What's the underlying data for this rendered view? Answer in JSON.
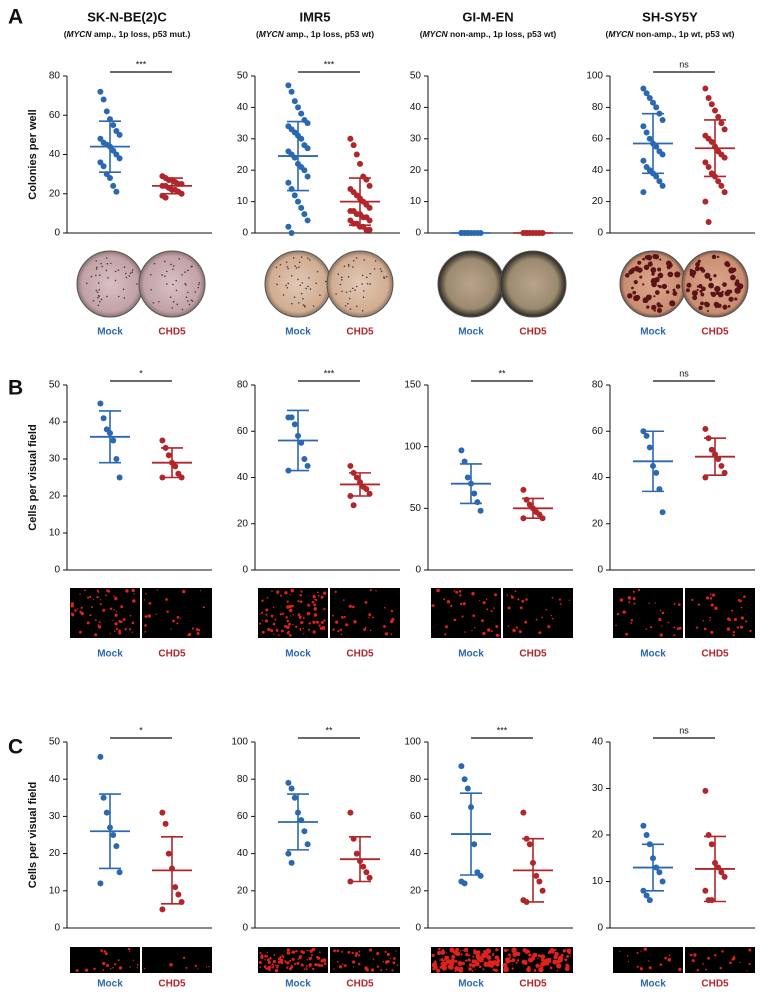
{
  "figure": {
    "columns": [
      {
        "title": "SK-N-BE(2)C",
        "subtitle": [
          "(",
          "MYCN",
          " amp., 1p loss, p53 mut.)"
        ]
      },
      {
        "title": "IMR5",
        "subtitle": [
          "(",
          "MYCN",
          " amp., 1p loss, p53 wt)"
        ]
      },
      {
        "title": "GI-M-EN",
        "subtitle": [
          "(",
          "MYCN",
          " non-amp., 1p loss, p53 wt)"
        ]
      },
      {
        "title": "SH-SY5Y",
        "subtitle": [
          "(",
          "MYCN",
          " non-amp., 1p wt, p53 wt)"
        ]
      }
    ],
    "rows": [
      {
        "letter": "A",
        "ylabel": "Colonies per well"
      },
      {
        "letter": "B",
        "ylabel": "Cells per visual field"
      },
      {
        "letter": "C",
        "ylabel": "Cells per visual field"
      }
    ]
  },
  "chart_data": [
    {
      "type": "dotplot",
      "significance": "***",
      "ylim": [
        0,
        80
      ],
      "yticks": [
        0,
        20,
        40,
        60,
        80
      ],
      "series": [
        {
          "name": "Mock",
          "color": "#2a68b1",
          "mean": 44,
          "sd": 13,
          "values": [
            72,
            68,
            62,
            58,
            55,
            52,
            50,
            48,
            46,
            45,
            44,
            42,
            40,
            38,
            36,
            34,
            30,
            28,
            24,
            21
          ]
        },
        {
          "name": "CHD5",
          "color": "#b1262a",
          "mean": 24,
          "sd": 4,
          "values": [
            29,
            28,
            27,
            27,
            26,
            25,
            25,
            24,
            24,
            23,
            22,
            22,
            21,
            20,
            19,
            18
          ]
        }
      ]
    },
    {
      "type": "dotplot",
      "significance": "***",
      "ylim": [
        0,
        50
      ],
      "yticks": [
        0,
        10,
        20,
        30,
        40,
        50
      ],
      "series": [
        {
          "name": "Mock",
          "color": "#2a68b1",
          "mean": 24.5,
          "sd": 11,
          "values": [
            47,
            45,
            42,
            40,
            38,
            36,
            35,
            34,
            33,
            32,
            31,
            30,
            28,
            27,
            26,
            25,
            24,
            22,
            21,
            20,
            18,
            16,
            14,
            12,
            10,
            8,
            6,
            4,
            2,
            0
          ]
        },
        {
          "name": "CHD5",
          "color": "#b1262a",
          "mean": 10,
          "sd": 7.5,
          "values": [
            30,
            28,
            25,
            22,
            18,
            17,
            15,
            14,
            13,
            12,
            11,
            10,
            9,
            8,
            7,
            7,
            6,
            6,
            5,
            5,
            4,
            4,
            3,
            3,
            2,
            2,
            1,
            1
          ]
        }
      ]
    },
    {
      "type": "dotplot",
      "ylim": [
        0,
        50
      ],
      "yticks": [
        0,
        10,
        20,
        30,
        40,
        50
      ],
      "series": [
        {
          "name": "Mock",
          "color": "#2a68b1",
          "mean": 0,
          "sd": 0,
          "values": [
            0,
            0,
            0,
            0,
            0,
            0,
            0,
            0,
            0,
            0
          ]
        },
        {
          "name": "CHD5",
          "color": "#b1262a",
          "mean": 0,
          "sd": 0,
          "values": [
            0,
            0,
            0,
            0,
            0,
            0,
            0,
            0,
            0,
            0
          ]
        }
      ]
    },
    {
      "type": "dotplot",
      "significance": "ns",
      "ylim": [
        0,
        100
      ],
      "yticks": [
        0,
        20,
        40,
        60,
        80,
        100
      ],
      "series": [
        {
          "name": "Mock",
          "color": "#2a68b1",
          "mean": 57,
          "sd": 19,
          "values": [
            92,
            89,
            86,
            83,
            80,
            76,
            72,
            68,
            64,
            60,
            57,
            55,
            52,
            50,
            46,
            42,
            40,
            38,
            36,
            33,
            30,
            26
          ]
        },
        {
          "name": "CHD5",
          "color": "#b1262a",
          "mean": 54,
          "sd": 18,
          "values": [
            92,
            86,
            82,
            78,
            74,
            70,
            66,
            62,
            60,
            58,
            55,
            52,
            50,
            48,
            45,
            42,
            38,
            36,
            33,
            30,
            26,
            20,
            7
          ]
        }
      ]
    },
    {
      "type": "dotplot",
      "significance": "*",
      "ylim": [
        0,
        50
      ],
      "yticks": [
        0,
        10,
        20,
        30,
        40,
        50
      ],
      "series": [
        {
          "name": "Mock",
          "color": "#2a68b1",
          "mean": 36,
          "sd": 7,
          "values": [
            45,
            41,
            38,
            37,
            35,
            30,
            25
          ]
        },
        {
          "name": "CHD5",
          "color": "#b1262a",
          "mean": 29,
          "sd": 4,
          "values": [
            35,
            33,
            31,
            29,
            28,
            26,
            25,
            25
          ]
        }
      ]
    },
    {
      "type": "dotplot",
      "significance": "***",
      "ylim": [
        0,
        80
      ],
      "yticks": [
        0,
        20,
        40,
        60,
        80
      ],
      "series": [
        {
          "name": "Mock",
          "color": "#2a68b1",
          "mean": 56,
          "sd": 13,
          "values": [
            66,
            66,
            63,
            58,
            55,
            48,
            45,
            43
          ]
        },
        {
          "name": "CHD5",
          "color": "#b1262a",
          "mean": 37,
          "sd": 5,
          "values": [
            45,
            42,
            40,
            38,
            36,
            35,
            33,
            32,
            28
          ]
        }
      ]
    },
    {
      "type": "dotplot",
      "significance": "**",
      "ylim": [
        0,
        150
      ],
      "yticks": [
        0,
        50,
        100,
        150
      ],
      "series": [
        {
          "name": "Mock",
          "color": "#2a68b1",
          "mean": 70,
          "sd": 16,
          "values": [
            97,
            88,
            75,
            70,
            62,
            55,
            48
          ]
        },
        {
          "name": "CHD5",
          "color": "#b1262a",
          "mean": 50,
          "sd": 8,
          "values": [
            65,
            57,
            53,
            50,
            47,
            45,
            42,
            42
          ]
        }
      ]
    },
    {
      "type": "dotplot",
      "significance": "ns",
      "ylim": [
        0,
        80
      ],
      "yticks": [
        0,
        20,
        40,
        60,
        80
      ],
      "series": [
        {
          "name": "Mock",
          "color": "#2a68b1",
          "mean": 47,
          "sd": 13,
          "values": [
            60,
            58,
            53,
            45,
            42,
            35,
            25
          ]
        },
        {
          "name": "CHD5",
          "color": "#b1262a",
          "mean": 49,
          "sd": 8,
          "values": [
            61,
            57,
            52,
            50,
            48,
            45,
            42,
            40
          ]
        }
      ]
    },
    {
      "type": "dotplot",
      "significance": "*",
      "ylim": [
        0,
        50
      ],
      "yticks": [
        0,
        10,
        20,
        30,
        40,
        50
      ],
      "series": [
        {
          "name": "Mock",
          "color": "#2a68b1",
          "mean": 26,
          "sd": 10,
          "values": [
            46,
            35,
            31,
            27,
            25,
            22,
            15,
            12
          ]
        },
        {
          "name": "CHD5",
          "color": "#b1262a",
          "mean": 15.5,
          "sd": 9,
          "values": [
            31,
            28,
            20,
            16,
            11,
            9,
            7,
            5
          ]
        }
      ]
    },
    {
      "type": "dotplot",
      "significance": "**",
      "ylim": [
        0,
        100
      ],
      "yticks": [
        0,
        20,
        40,
        60,
        80,
        100
      ],
      "series": [
        {
          "name": "Mock",
          "color": "#2a68b1",
          "mean": 57,
          "sd": 15,
          "values": [
            78,
            75,
            70,
            62,
            58,
            52,
            45,
            40,
            35
          ]
        },
        {
          "name": "CHD5",
          "color": "#b1262a",
          "mean": 37,
          "sd": 12,
          "values": [
            62,
            48,
            40,
            36,
            33,
            30,
            27,
            25
          ]
        }
      ]
    },
    {
      "type": "dotplot",
      "significance": "***",
      "ylim": [
        0,
        100
      ],
      "yticks": [
        0,
        20,
        40,
        60,
        80,
        100
      ],
      "series": [
        {
          "name": "Mock",
          "color": "#2a68b1",
          "mean": 50.5,
          "sd": 22,
          "values": [
            87,
            80,
            75,
            65,
            45,
            30,
            28,
            25,
            24
          ]
        },
        {
          "name": "CHD5",
          "color": "#b1262a",
          "mean": 31,
          "sd": 17,
          "values": [
            62,
            48,
            45,
            35,
            28,
            25,
            20,
            15,
            14
          ]
        }
      ]
    },
    {
      "type": "dotplot",
      "significance": "ns",
      "ylim": [
        0,
        40
      ],
      "yticks": [
        0,
        10,
        20,
        30,
        40
      ],
      "series": [
        {
          "name": "Mock",
          "color": "#2a68b1",
          "mean": 13,
          "sd": 5,
          "values": [
            22,
            20,
            18,
            15,
            13,
            12,
            10,
            8,
            7,
            6
          ]
        },
        {
          "name": "CHD5",
          "color": "#b1262a",
          "mean": 12.7,
          "sd": 7,
          "values": [
            29.5,
            20,
            18,
            14,
            13,
            12,
            11,
            8,
            6,
            6
          ]
        }
      ]
    }
  ]
}
